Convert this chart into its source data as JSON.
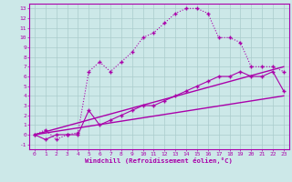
{
  "xlabel": "Windchill (Refroidissement éolien,°C)",
  "bg_color": "#cce8e8",
  "grid_color": "#aacccc",
  "line_color": "#aa00aa",
  "xlim": [
    -0.5,
    23.5
  ],
  "ylim": [
    -1.5,
    13.5
  ],
  "xticks": [
    0,
    1,
    2,
    3,
    4,
    5,
    6,
    7,
    8,
    9,
    10,
    11,
    12,
    13,
    14,
    15,
    16,
    17,
    18,
    19,
    20,
    21,
    22,
    23
  ],
  "yticks": [
    -1,
    0,
    1,
    2,
    3,
    4,
    5,
    6,
    7,
    8,
    9,
    10,
    11,
    12,
    13
  ],
  "curve1_x": [
    0,
    1,
    2,
    3,
    4,
    5,
    6,
    7,
    8,
    9,
    10,
    11,
    12,
    13,
    14,
    15,
    16,
    17,
    18,
    19,
    20,
    21,
    22,
    23
  ],
  "curve1_y": [
    0.0,
    0.5,
    -0.5,
    0.0,
    0.2,
    6.5,
    7.5,
    6.5,
    7.5,
    8.5,
    10.0,
    10.5,
    11.5,
    12.5,
    13.0,
    13.0,
    12.5,
    10.0,
    10.0,
    9.5,
    7.0,
    7.0,
    7.0,
    6.5
  ],
  "curve2_x": [
    0,
    1,
    2,
    3,
    4,
    5,
    6,
    7,
    8,
    9,
    10,
    11,
    12,
    13,
    14,
    15,
    16,
    17,
    18,
    19,
    20,
    21,
    22,
    23
  ],
  "curve2_y": [
    0.0,
    -0.5,
    0.0,
    0.0,
    0.0,
    2.5,
    1.0,
    1.5,
    2.0,
    2.5,
    3.0,
    3.0,
    3.5,
    4.0,
    4.5,
    5.0,
    5.5,
    6.0,
    6.0,
    6.5,
    6.0,
    6.0,
    6.5,
    4.5
  ],
  "curve3_x": [
    0,
    23
  ],
  "curve3_y": [
    0.0,
    7.0
  ],
  "curve4_x": [
    0,
    23
  ],
  "curve4_y": [
    0.0,
    4.0
  ]
}
